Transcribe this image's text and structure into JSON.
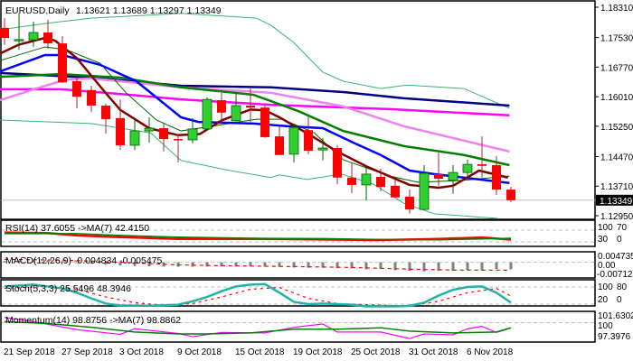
{
  "chart_data": {
    "type": "candlestick",
    "header": {
      "symbol": "EURUSD,Daily",
      "ohlc": "1.13621 1.13689 1.13297 1.13349"
    },
    "price_axis": {
      "max": 1.1831,
      "min": 1.1295,
      "labels": [
        "1.18310",
        "1.17530",
        "1.16770",
        "1.16010",
        "1.15250",
        "1.14470",
        "1.13710",
        "1.12950"
      ],
      "current": "1.13349"
    },
    "dates": [
      "21 Sep 2018",
      "27 Sep 2018",
      "3 Oct 2018",
      "9 Oct 2018",
      "15 Oct 2018",
      "19 Oct 2018",
      "25 Oct 2018",
      "31 Oct 2018",
      "6 Nov 2018"
    ],
    "dates_every_n_bars": 4,
    "candles": [
      [
        1.1778,
        1.1803,
        1.1734,
        1.1752
      ],
      [
        1.1747,
        1.1815,
        1.1722,
        1.1748
      ],
      [
        1.1747,
        1.1794,
        1.1729,
        1.1766
      ],
      [
        1.1766,
        1.1799,
        1.1724,
        1.1738
      ],
      [
        1.1738,
        1.1757,
        1.1636,
        1.1638
      ],
      [
        1.1641,
        1.1652,
        1.1571,
        1.1601
      ],
      [
        1.1618,
        1.1629,
        1.1562,
        1.1578
      ],
      [
        1.1578,
        1.1583,
        1.1506,
        1.1543
      ],
      [
        1.1546,
        1.1594,
        1.1464,
        1.1476
      ],
      [
        1.1476,
        1.1543,
        1.1464,
        1.1513
      ],
      [
        1.1513,
        1.1548,
        1.1483,
        1.152
      ],
      [
        1.152,
        1.1532,
        1.146,
        1.1492
      ],
      [
        1.1492,
        1.1504,
        1.1432,
        1.149
      ],
      [
        1.149,
        1.1546,
        1.1481,
        1.1518
      ],
      [
        1.1518,
        1.1599,
        1.1518,
        1.1594
      ],
      [
        1.1592,
        1.1611,
        1.1532,
        1.156
      ],
      [
        1.1539,
        1.1608,
        1.1534,
        1.1578
      ],
      [
        1.1578,
        1.1622,
        1.1536,
        1.1573
      ],
      [
        1.1573,
        1.1578,
        1.1495,
        1.1497
      ],
      [
        1.1499,
        1.1525,
        1.1451,
        1.1451
      ],
      [
        1.1453,
        1.1532,
        1.1432,
        1.1522
      ],
      [
        1.1515,
        1.155,
        1.1453,
        1.1462
      ],
      [
        1.1464,
        1.1495,
        1.1437,
        1.1469
      ],
      [
        1.1469,
        1.1476,
        1.1376,
        1.1393
      ],
      [
        1.1393,
        1.1432,
        1.1353,
        1.1374
      ],
      [
        1.1374,
        1.1418,
        1.1335,
        1.1402
      ],
      [
        1.1395,
        1.1416,
        1.1358,
        1.1369
      ],
      [
        1.1372,
        1.1388,
        1.1342,
        1.1342
      ],
      [
        1.1344,
        1.1362,
        1.13,
        1.1311
      ],
      [
        1.1311,
        1.1425,
        1.1311,
        1.1404
      ],
      [
        1.1402,
        1.1457,
        1.1372,
        1.139
      ],
      [
        1.1386,
        1.1425,
        1.1351,
        1.1406
      ],
      [
        1.1406,
        1.1439,
        1.1393,
        1.1427
      ],
      [
        1.1427,
        1.1499,
        1.1393,
        1.1423
      ],
      [
        1.1425,
        1.1448,
        1.1348,
        1.1362
      ],
      [
        1.13621,
        1.13689,
        1.13297,
        1.13349
      ]
    ],
    "overlays": [
      {
        "name": "bb-upper",
        "color": "#3cb371",
        "points": [
          [
            -0.3,
            1.1773
          ],
          [
            3,
            1.179
          ],
          [
            6,
            1.1803
          ],
          [
            12.2,
            1.1815
          ],
          [
            17.4,
            1.1803
          ],
          [
            18.4,
            1.1785
          ],
          [
            20,
            1.174
          ],
          [
            22,
            1.1664
          ],
          [
            23.4,
            1.1641
          ],
          [
            26,
            1.1622
          ],
          [
            27.8,
            1.1631
          ],
          [
            31.75,
            1.1622
          ],
          [
            34.9,
            1.1571
          ]
        ]
      },
      {
        "name": "bb-lower",
        "color": "#3cb371",
        "points": [
          [
            -0.3,
            1.1541
          ],
          [
            6,
            1.1532
          ],
          [
            10.1,
            1.1508
          ],
          [
            12.2,
            1.1437
          ],
          [
            15.3,
            1.1413
          ],
          [
            18.4,
            1.1393
          ],
          [
            19,
            1.14
          ],
          [
            20.9,
            1.1388
          ],
          [
            23.3,
            1.1402
          ],
          [
            25.5,
            1.1376
          ],
          [
            27.6,
            1.1327
          ],
          [
            29.7,
            1.13
          ],
          [
            34.1,
            1.1288
          ]
        ]
      },
      {
        "name": "ma-navy",
        "color": "#000080",
        "points": [
          [
            -0.3,
            1.1662
          ],
          [
            6,
            1.165
          ],
          [
            12.2,
            1.1629
          ],
          [
            18.4,
            1.1625
          ],
          [
            23.4,
            1.1613
          ],
          [
            27.6,
            1.1597
          ],
          [
            34.9,
            1.1578
          ]
        ]
      },
      {
        "name": "ma-magenta",
        "color": "#ff00ff",
        "points": [
          [
            -0.3,
            1.162
          ],
          [
            3.9,
            1.162
          ],
          [
            8,
            1.1608
          ],
          [
            12.2,
            1.1594
          ],
          [
            18.4,
            1.158
          ],
          [
            26.6,
            1.1569
          ],
          [
            34.9,
            1.1553
          ]
        ]
      },
      {
        "name": "ma-violet",
        "color": "#ee82ee",
        "points": [
          [
            -0.3,
            1.1592
          ],
          [
            2.2,
            1.1622
          ],
          [
            4.25,
            1.1645
          ],
          [
            6,
            1.1648
          ],
          [
            12.2,
            1.1625
          ],
          [
            18.4,
            1.1611
          ],
          [
            23.4,
            1.1576
          ],
          [
            27.6,
            1.1525
          ],
          [
            34.9,
            1.146
          ]
        ]
      },
      {
        "name": "ma-green",
        "color": "#008000",
        "points": [
          [
            -0.3,
            1.1652
          ],
          [
            3.9,
            1.1659
          ],
          [
            8,
            1.165
          ],
          [
            12.2,
            1.1625
          ],
          [
            17.2,
            1.1606
          ],
          [
            20.3,
            1.1564
          ],
          [
            23.4,
            1.1513
          ],
          [
            27.6,
            1.1474
          ],
          [
            31.75,
            1.1451
          ],
          [
            34.9,
            1.1425
          ]
        ]
      },
      {
        "name": "ma-thin-green",
        "color": "#006400",
        "points": [
          [
            -0.3,
            1.1694
          ],
          [
            2.8,
            1.1729
          ],
          [
            4.25,
            1.1722
          ],
          [
            6.6,
            1.1687
          ],
          [
            8.4,
            1.1611
          ],
          [
            10.5,
            1.1541
          ],
          [
            12.2,
            1.1513
          ],
          [
            14.3,
            1.1525
          ],
          [
            17.4,
            1.1543
          ],
          [
            19.2,
            1.1543
          ],
          [
            21.4,
            1.1508
          ],
          [
            23.4,
            1.1439
          ],
          [
            26.6,
            1.1397
          ],
          [
            28.6,
            1.1381
          ],
          [
            31.75,
            1.1386
          ],
          [
            34.9,
            1.1397
          ]
        ]
      },
      {
        "name": "ma-blue",
        "color": "#0000ff",
        "points": [
          [
            -0.3,
            1.1666
          ],
          [
            2.8,
            1.1708
          ],
          [
            4,
            1.1708
          ],
          [
            6.6,
            1.1683
          ],
          [
            9.1,
            1.1641
          ],
          [
            12.2,
            1.1548
          ],
          [
            13.4,
            1.1536
          ],
          [
            17.2,
            1.1532
          ],
          [
            19.6,
            1.1525
          ],
          [
            22,
            1.152
          ],
          [
            24.1,
            1.1483
          ],
          [
            26,
            1.1451
          ],
          [
            28,
            1.1411
          ],
          [
            29.7,
            1.1402
          ],
          [
            34.9,
            1.1379
          ]
        ]
      },
      {
        "name": "ma-darkred",
        "color": "#800000",
        "points": [
          [
            -0.3,
            1.1712
          ],
          [
            1,
            1.1735
          ],
          [
            2.8,
            1.1752
          ],
          [
            3.5,
            1.1745
          ],
          [
            5,
            1.17
          ],
          [
            7,
            1.161
          ],
          [
            8,
            1.1567
          ],
          [
            10,
            1.152
          ],
          [
            12,
            1.1502
          ],
          [
            13.5,
            1.1505
          ],
          [
            15,
            1.154
          ],
          [
            17,
            1.1568
          ],
          [
            18,
            1.1566
          ],
          [
            19,
            1.1548
          ],
          [
            21,
            1.1505
          ],
          [
            23,
            1.146
          ],
          [
            25,
            1.1422
          ],
          [
            27,
            1.139
          ],
          [
            28,
            1.1374
          ],
          [
            30,
            1.1367
          ],
          [
            31,
            1.1372
          ],
          [
            32.8,
            1.1411
          ],
          [
            34.8,
            1.1393
          ]
        ]
      }
    ],
    "indicators": {
      "rsi": {
        "label": "RSI(14) 37.6055  ->MA(7) 42.4150",
        "axis_labels": [
          "100",
          "70",
          "30",
          "0"
        ],
        "levels": [
          70,
          30
        ],
        "rsi": [
          [
            0,
            62
          ],
          [
            3,
            60
          ],
          [
            5,
            52
          ],
          [
            8,
            46
          ],
          [
            12,
            40
          ],
          [
            18,
            40
          ],
          [
            22,
            38
          ],
          [
            26,
            36
          ],
          [
            30,
            40
          ],
          [
            33,
            45
          ],
          [
            35,
            37.6
          ]
        ],
        "ma": [
          [
            0,
            58
          ],
          [
            5,
            58
          ],
          [
            8,
            52
          ],
          [
            12,
            46
          ],
          [
            18,
            42
          ],
          [
            22,
            41
          ],
          [
            26,
            38
          ],
          [
            30,
            37
          ],
          [
            33,
            40
          ],
          [
            35,
            42.4
          ]
        ]
      },
      "macd": {
        "label": "MACD(12,26,9) -0.004834 -0.005475",
        "axis_labels": [
          "0.004735",
          "0.00",
          "-0.007123"
        ],
        "max": 0.004735,
        "min": -0.007123,
        "main": [
          0.0008,
          0.0012,
          0.0015,
          0.0014,
          0.0008,
          -0.0002,
          -0.001,
          -0.0016,
          -0.0022,
          -0.0026,
          -0.0028,
          -0.003,
          -0.0031,
          -0.0031,
          -0.003,
          -0.0029,
          -0.0029,
          -0.0029,
          -0.003,
          -0.0032,
          -0.0036,
          -0.0038,
          -0.0038,
          -0.0041,
          -0.0043,
          -0.0049,
          -0.0047,
          -0.0055,
          -0.0059,
          -0.0063,
          -0.0059,
          -0.0059,
          -0.0054,
          -0.0057,
          -0.0047,
          -0.004834
        ],
        "signal": [
          [
            0,
            0.002
          ],
          [
            4,
            0.0015
          ],
          [
            8,
            0.0
          ],
          [
            12,
            -0.0018
          ],
          [
            15,
            -0.0024
          ],
          [
            20,
            -0.003
          ],
          [
            24,
            -0.0036
          ],
          [
            28,
            -0.0048
          ],
          [
            31,
            -0.0054
          ],
          [
            35,
            -0.005475
          ]
        ]
      },
      "stoch": {
        "label": "Stoch(5,3,3) 25.5496 48.3946",
        "axis_labels": [
          "100",
          "80",
          "20",
          "0"
        ],
        "levels": [
          80,
          20
        ],
        "main": [
          [
            0,
            82
          ],
          [
            2,
            88
          ],
          [
            4,
            75
          ],
          [
            5,
            60
          ],
          [
            6,
            40
          ],
          [
            7,
            22
          ],
          [
            8,
            15
          ],
          [
            10,
            14
          ],
          [
            12,
            18
          ],
          [
            13,
            30
          ],
          [
            14,
            45
          ],
          [
            15,
            65
          ],
          [
            16,
            82
          ],
          [
            17,
            88
          ],
          [
            18,
            90
          ],
          [
            19,
            60
          ],
          [
            20,
            28
          ],
          [
            21,
            20
          ],
          [
            22,
            22
          ],
          [
            24,
            18
          ],
          [
            25,
            12
          ],
          [
            27,
            12
          ],
          [
            28,
            14
          ],
          [
            29,
            25
          ],
          [
            30,
            50
          ],
          [
            31,
            70
          ],
          [
            32,
            80
          ],
          [
            33,
            82
          ],
          [
            34,
            60
          ],
          [
            35,
            25.5
          ]
        ],
        "signal": [
          [
            0,
            75
          ],
          [
            3,
            82
          ],
          [
            5,
            72
          ],
          [
            7,
            45
          ],
          [
            9,
            25
          ],
          [
            11,
            16
          ],
          [
            13,
            22
          ],
          [
            15,
            45
          ],
          [
            17,
            72
          ],
          [
            19,
            78
          ],
          [
            21,
            40
          ],
          [
            23,
            22
          ],
          [
            25,
            18
          ],
          [
            28,
            13
          ],
          [
            30,
            30
          ],
          [
            32,
            60
          ],
          [
            34,
            75
          ],
          [
            35,
            48.4
          ]
        ]
      },
      "momentum": {
        "label": "Momentum(14) 98.8756  ->MA(7) 98.8862",
        "axis_labels": [
          "101.6302",
          "100",
          "97.3976"
        ],
        "max": 101.6302,
        "min": 97.3976,
        "level": 100,
        "main": [
          [
            0,
            101.1
          ],
          [
            2,
            100.2
          ],
          [
            5,
            98.5
          ],
          [
            8,
            97.5
          ],
          [
            9,
            98.7
          ],
          [
            12,
            97.7
          ],
          [
            13,
            97.0
          ],
          [
            15,
            97.9
          ],
          [
            18,
            97.8
          ],
          [
            20,
            99.0
          ],
          [
            22,
            99.7
          ],
          [
            23,
            98.0
          ],
          [
            26,
            98.0
          ],
          [
            28,
            96.6
          ],
          [
            29,
            97.6
          ],
          [
            31,
            97.4
          ],
          [
            32,
            98.7
          ],
          [
            33,
            99.2
          ],
          [
            34,
            97.9
          ],
          [
            35,
            98.88
          ]
        ],
        "ma": [
          [
            0,
            100.2
          ],
          [
            3,
            99.8
          ],
          [
            6,
            99.0
          ],
          [
            9,
            98.0
          ],
          [
            12,
            97.6
          ],
          [
            14,
            97.6
          ],
          [
            17,
            97.8
          ],
          [
            20,
            98.6
          ],
          [
            23,
            98.6
          ],
          [
            26,
            98.9
          ],
          [
            28,
            98.2
          ],
          [
            31,
            97.8
          ],
          [
            34,
            98.0
          ],
          [
            35,
            98.89
          ]
        ]
      }
    },
    "colors": {
      "bull": "#32cd32",
      "bear": "#ff0000",
      "rsi": "#ff0000",
      "rsi_ma": "#008000",
      "macd": "#808080",
      "macd_signal": "#ff0000",
      "stoch": "#20b2aa",
      "stoch_signal": "#ff0000",
      "mom": "#ff00ff",
      "mom_ma": "#008000"
    }
  }
}
